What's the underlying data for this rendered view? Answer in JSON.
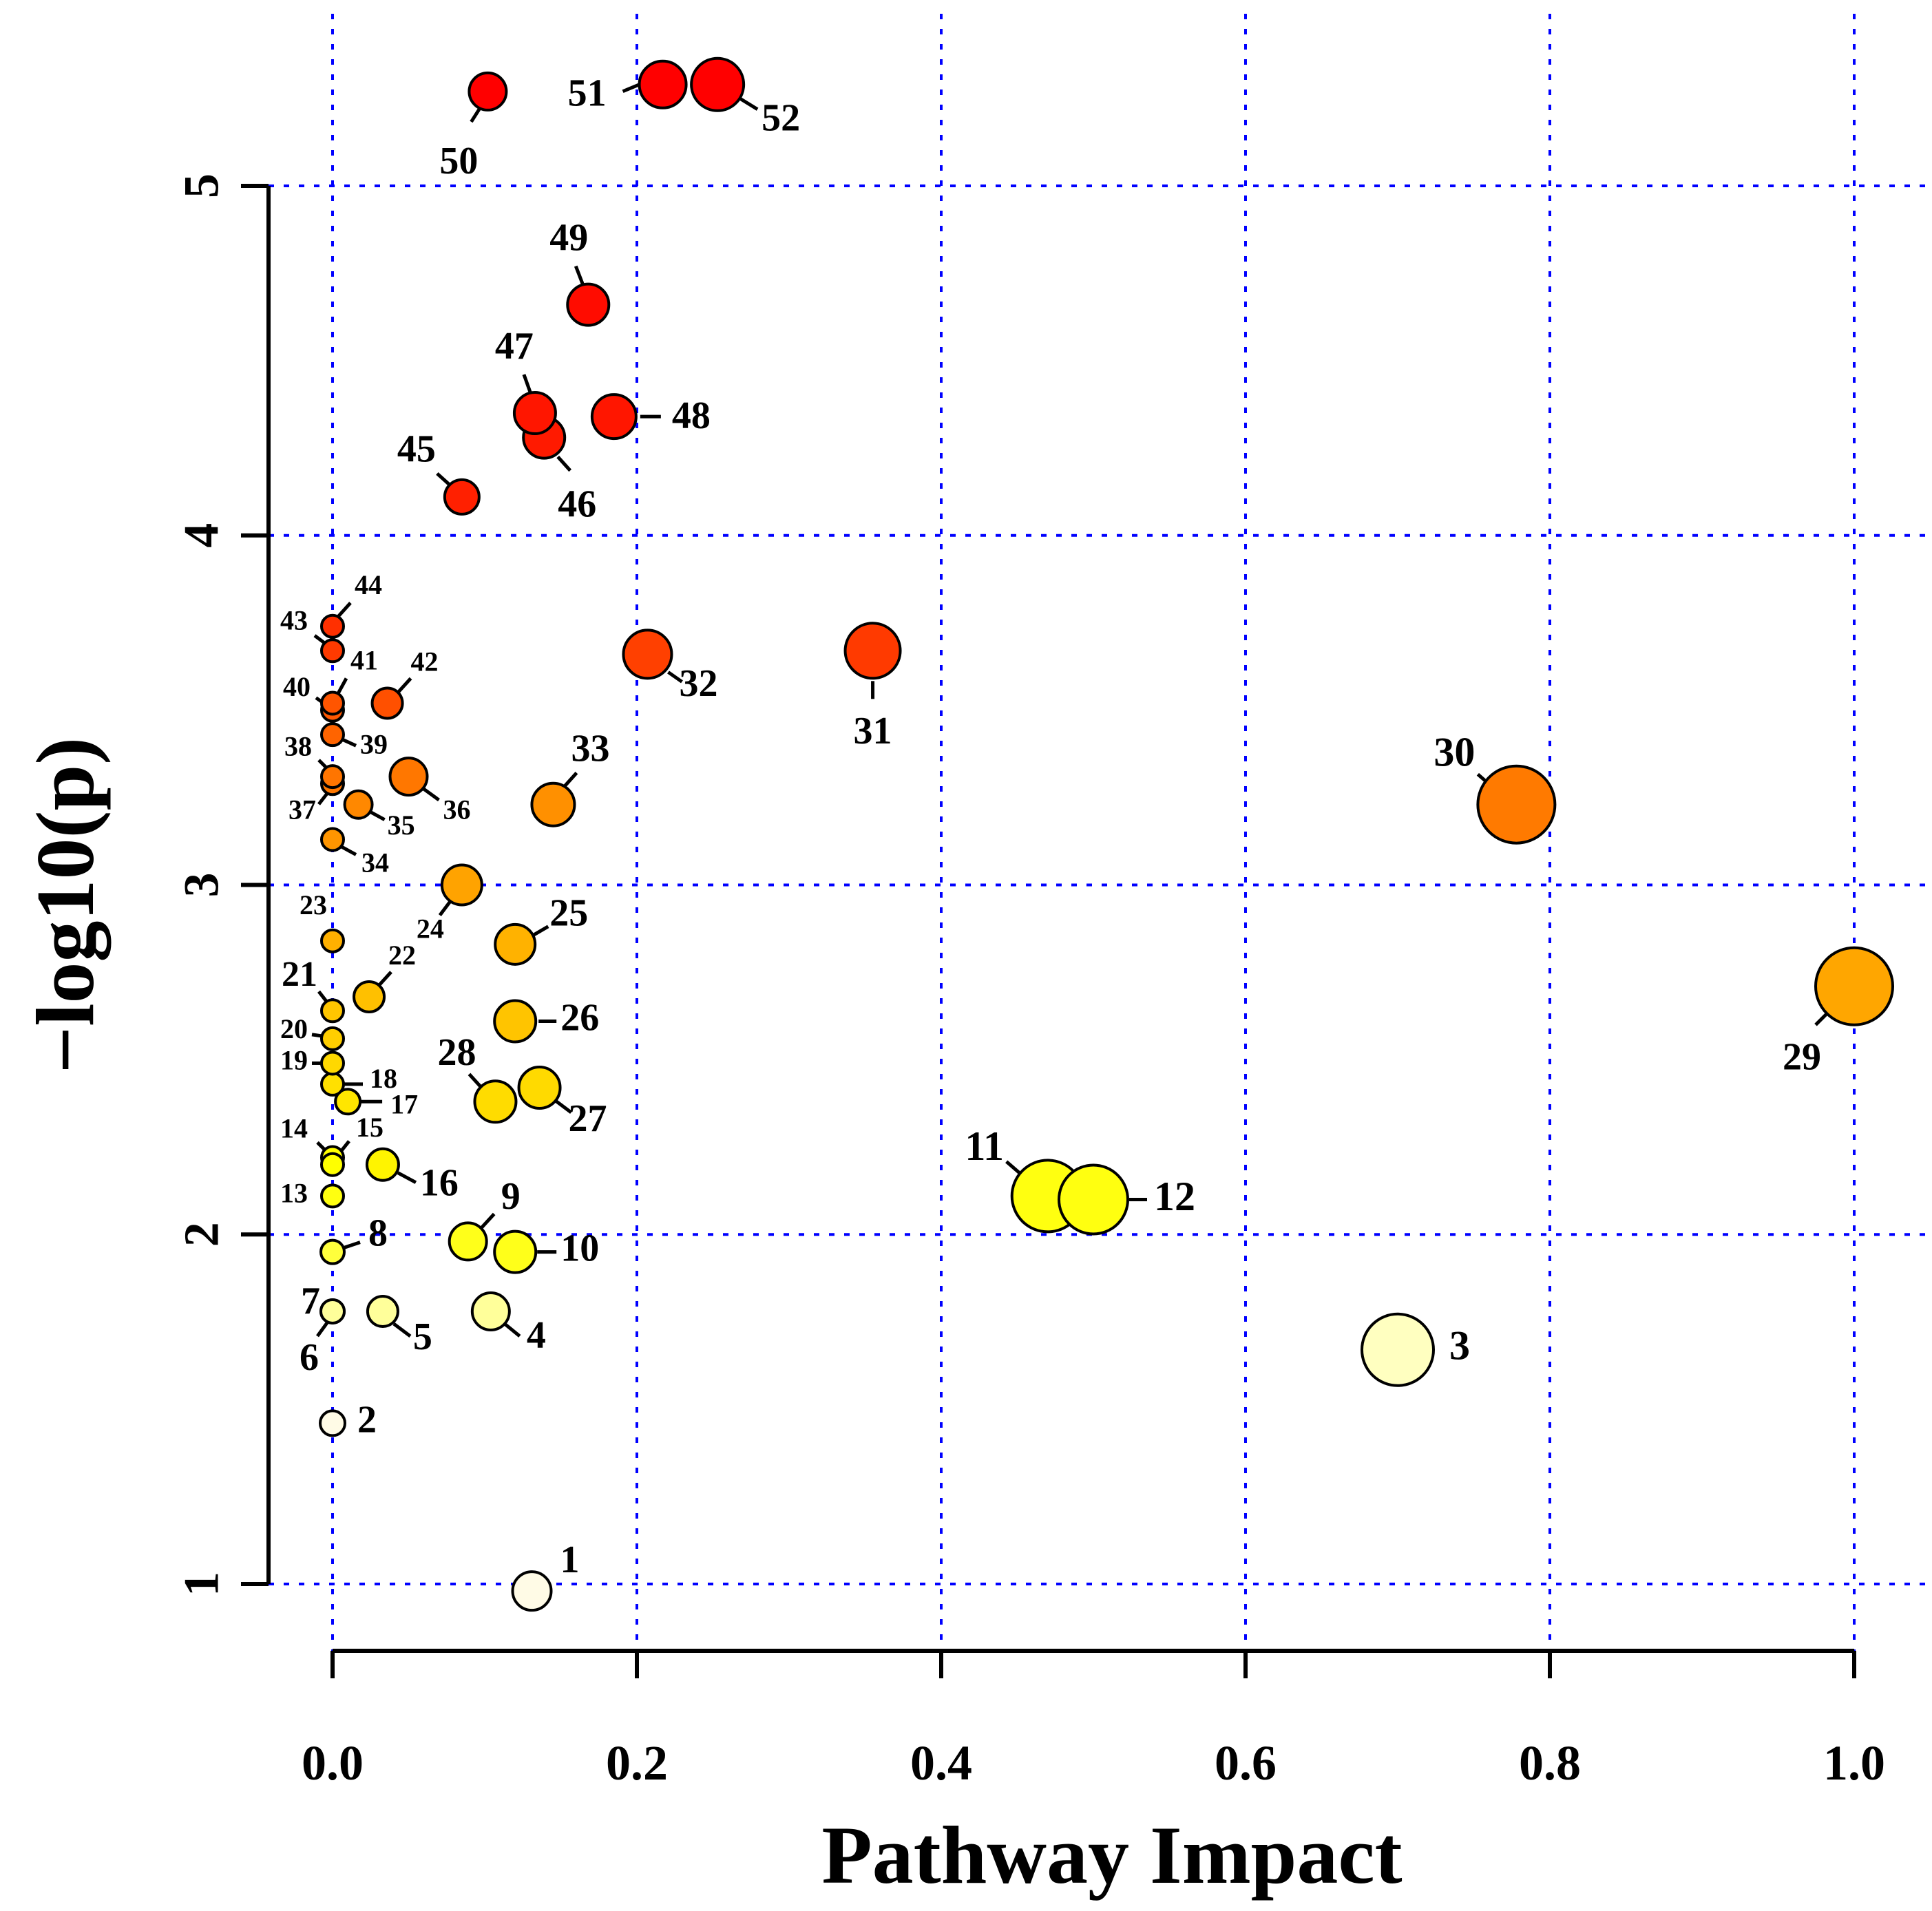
{
  "chart_data": {
    "type": "scatter",
    "title": "",
    "xlabel": "Pathway Impact",
    "ylabel": "−log10(p)",
    "xlim": [
      -0.04,
      1.04
    ],
    "ylim": [
      0.8,
      5.5
    ],
    "x_ticks": [
      0.0,
      0.2,
      0.4,
      0.6,
      0.8,
      1.0
    ],
    "x_tick_labels": [
      "0.0",
      "0.2",
      "0.4",
      "0.6",
      "0.8",
      "1.0"
    ],
    "y_ticks": [
      1,
      2,
      3,
      4,
      5
    ],
    "y_tick_labels": [
      "1",
      "2",
      "3",
      "4",
      "5"
    ],
    "grid": true,
    "grid_color": "#0000ff",
    "point_edge_color": "#000000",
    "legend": "none",
    "color_scale_note": "circle fill runs from pale yellow (low -log10 p) to red (high -log10 p); circle size grows with pathway impact",
    "points": [
      {
        "label": "1",
        "x": 0.131,
        "y": 0.98,
        "color": "#fffbe6"
      },
      {
        "label": "2",
        "x": 0.0,
        "y": 1.46,
        "color": "#fffbe6"
      },
      {
        "label": "3",
        "x": 0.7,
        "y": 1.67,
        "color": "#ffffc0"
      },
      {
        "label": "4",
        "x": 0.104,
        "y": 1.78,
        "color": "#ffff9a"
      },
      {
        "label": "5",
        "x": 0.033,
        "y": 1.78,
        "color": "#ffff9a"
      },
      {
        "label": "6",
        "x": 0.0,
        "y": 1.78,
        "color": "#ffff9a"
      },
      {
        "label": "7",
        "x": 0.0,
        "y": 1.78,
        "color": "#ffff9a"
      },
      {
        "label": "8",
        "x": 0.0,
        "y": 1.95,
        "color": "#ffff3c"
      },
      {
        "label": "9",
        "x": 0.089,
        "y": 1.98,
        "color": "#ffff1a"
      },
      {
        "label": "10",
        "x": 0.12,
        "y": 1.95,
        "color": "#ffff1a"
      },
      {
        "label": "11",
        "x": 0.47,
        "y": 2.11,
        "color": "#ffff10"
      },
      {
        "label": "12",
        "x": 0.5,
        "y": 2.1,
        "color": "#ffff10"
      },
      {
        "label": "13",
        "x": 0.0,
        "y": 2.11,
        "color": "#ffff10"
      },
      {
        "label": "14",
        "x": 0.0,
        "y": 2.22,
        "color": "#ffff00"
      },
      {
        "label": "15",
        "x": 0.0,
        "y": 2.2,
        "color": "#ffff00"
      },
      {
        "label": "16",
        "x": 0.033,
        "y": 2.2,
        "color": "#fff400"
      },
      {
        "label": "17",
        "x": 0.01,
        "y": 2.38,
        "color": "#ffe600"
      },
      {
        "label": "18",
        "x": 0.0,
        "y": 2.43,
        "color": "#ffe000"
      },
      {
        "label": "19",
        "x": 0.0,
        "y": 2.49,
        "color": "#ffd800"
      },
      {
        "label": "20",
        "x": 0.0,
        "y": 2.56,
        "color": "#ffce00"
      },
      {
        "label": "21",
        "x": 0.0,
        "y": 2.64,
        "color": "#ffc600"
      },
      {
        "label": "22",
        "x": 0.024,
        "y": 2.68,
        "color": "#ffc000"
      },
      {
        "label": "23",
        "x": 0.0,
        "y": 2.84,
        "color": "#ffb000"
      },
      {
        "label": "24",
        "x": 0.085,
        "y": 3.0,
        "color": "#ffa300"
      },
      {
        "label": "25",
        "x": 0.12,
        "y": 2.83,
        "color": "#ffb200"
      },
      {
        "label": "26",
        "x": 0.12,
        "y": 2.61,
        "color": "#ffc400"
      },
      {
        "label": "27",
        "x": 0.136,
        "y": 2.42,
        "color": "#ffda00"
      },
      {
        "label": "28",
        "x": 0.107,
        "y": 2.38,
        "color": "#ffdc00"
      },
      {
        "label": "29",
        "x": 1.0,
        "y": 2.71,
        "color": "#ffa600"
      },
      {
        "label": "30",
        "x": 0.778,
        "y": 3.23,
        "color": "#ff7a00"
      },
      {
        "label": "31",
        "x": 0.355,
        "y": 3.67,
        "color": "#ff3a00"
      },
      {
        "label": "32",
        "x": 0.207,
        "y": 3.66,
        "color": "#ff4000"
      },
      {
        "label": "33",
        "x": 0.145,
        "y": 3.23,
        "color": "#ff9000"
      },
      {
        "label": "34",
        "x": 0.0,
        "y": 3.13,
        "color": "#ff9500"
      },
      {
        "label": "35",
        "x": 0.017,
        "y": 3.23,
        "color": "#ff8800"
      },
      {
        "label": "36",
        "x": 0.05,
        "y": 3.31,
        "color": "#ff7700"
      },
      {
        "label": "37",
        "x": 0.0,
        "y": 3.29,
        "color": "#ff7800"
      },
      {
        "label": "38",
        "x": 0.0,
        "y": 3.31,
        "color": "#ff7500"
      },
      {
        "label": "39",
        "x": 0.0,
        "y": 3.43,
        "color": "#ff6400"
      },
      {
        "label": "40",
        "x": 0.0,
        "y": 3.5,
        "color": "#ff5800"
      },
      {
        "label": "41",
        "x": 0.0,
        "y": 3.52,
        "color": "#ff5500"
      },
      {
        "label": "42",
        "x": 0.036,
        "y": 3.52,
        "color": "#ff5000"
      },
      {
        "label": "43",
        "x": 0.0,
        "y": 3.67,
        "color": "#ff3a00"
      },
      {
        "label": "44",
        "x": 0.0,
        "y": 3.74,
        "color": "#ff3000"
      },
      {
        "label": "45",
        "x": 0.085,
        "y": 4.11,
        "color": "#ff2000"
      },
      {
        "label": "46",
        "x": 0.139,
        "y": 4.28,
        "color": "#ff1a00"
      },
      {
        "label": "47",
        "x": 0.133,
        "y": 4.35,
        "color": "#ff1600"
      },
      {
        "label": "48",
        "x": 0.185,
        "y": 4.34,
        "color": "#ff1600"
      },
      {
        "label": "49",
        "x": 0.168,
        "y": 4.66,
        "color": "#ff0c00"
      },
      {
        "label": "50",
        "x": 0.102,
        "y": 5.27,
        "color": "#ff0000"
      },
      {
        "label": "51",
        "x": 0.217,
        "y": 5.29,
        "color": "#ff0000"
      },
      {
        "label": "52",
        "x": 0.253,
        "y": 5.29,
        "color": "#ff0000"
      }
    ]
  }
}
